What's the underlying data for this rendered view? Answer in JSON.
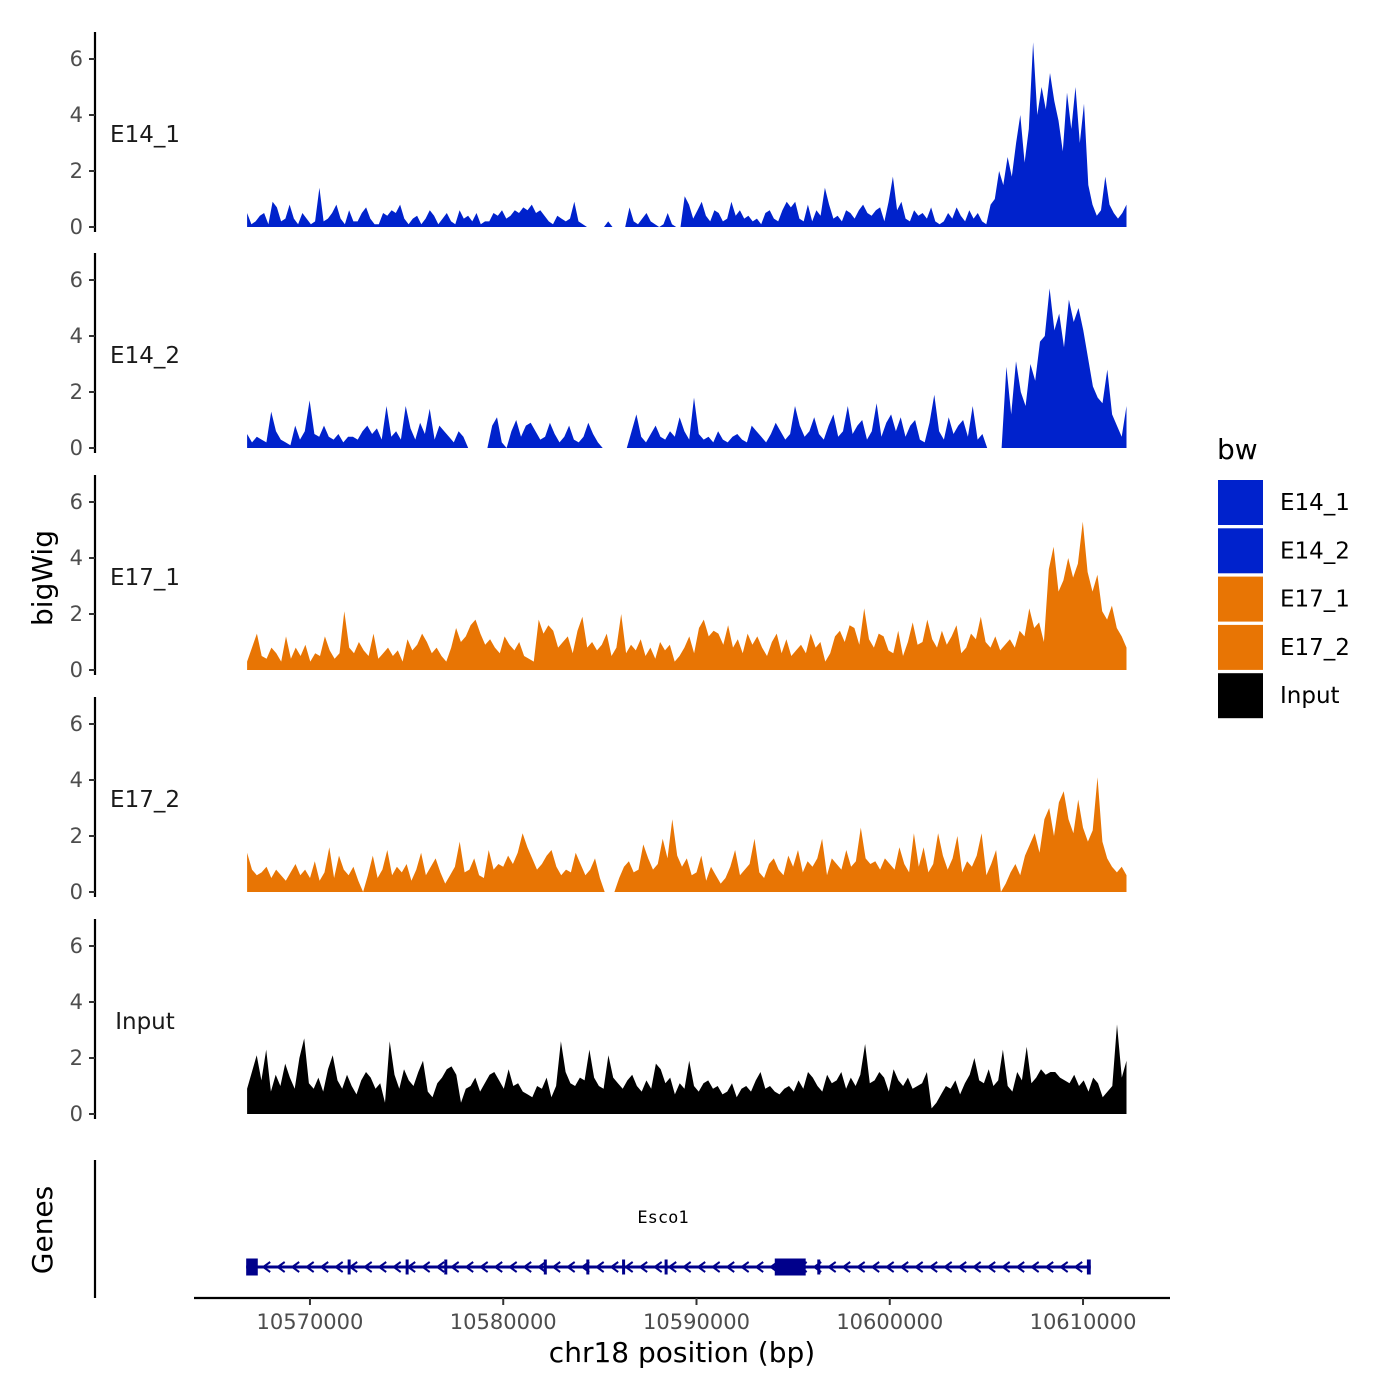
{
  "chart_data": {
    "type": "area",
    "layout": "stacked genome tracks",
    "x_axis": {
      "label": "chr18 position (bp)",
      "ticks": [
        10570000,
        10580000,
        10590000,
        10600000,
        10610000
      ],
      "tick_labels": [
        "10570000",
        "10580000",
        "10590000",
        "10600000",
        "10610000"
      ],
      "range": [
        10564000,
        10614500
      ],
      "data_range": [
        10566750,
        10612250
      ]
    },
    "y_axis": {
      "label": "bigWig",
      "range": [
        0,
        7
      ],
      "ticks": [
        0,
        2,
        4,
        6
      ],
      "tick_labels": [
        "0",
        "2",
        "4",
        "6"
      ]
    },
    "tracks": [
      {
        "name": "E14_1",
        "color": "#0022CC",
        "description": "low background with strong peak near 10608000-10610500",
        "values": [
          0.5,
          0.1,
          0.2,
          0.4,
          0.5,
          0.1,
          0.9,
          0.7,
          0.2,
          0.3,
          0.8,
          0.3,
          0.1,
          0.5,
          0.3,
          0.1,
          0.2,
          1.4,
          0.2,
          0.3,
          0.5,
          0.8,
          0.3,
          0.1,
          0.6,
          0.2,
          0.2,
          0.5,
          0.7,
          0.3,
          0.1,
          0.1,
          0.5,
          0.4,
          0.6,
          0.5,
          0.8,
          0.3,
          0.1,
          0.3,
          0.4,
          0.1,
          0.3,
          0.6,
          0.4,
          0.1,
          0.3,
          0.5,
          0.2,
          0.1,
          0.6,
          0.3,
          0.4,
          0.2,
          0.5,
          0.1,
          0.2,
          0.2,
          0.5,
          0.4,
          0.6,
          0.3,
          0.4,
          0.6,
          0.5,
          0.7,
          0.6,
          0.8,
          0.5,
          0.6,
          0.4,
          0.2,
          0.1,
          0.4,
          0.3,
          0.2,
          0.3,
          0.9,
          0.2,
          0.1,
          0,
          0,
          0,
          0,
          0,
          0.2,
          0,
          0,
          0,
          0,
          0.7,
          0.2,
          0.1,
          0.3,
          0.5,
          0.2,
          0.1,
          0,
          0.1,
          0.5,
          0.1,
          0,
          0,
          1.1,
          0.8,
          0.3,
          0.6,
          0.9,
          0.4,
          0.2,
          0.6,
          0.5,
          0.2,
          0.3,
          0.9,
          0.4,
          0.6,
          0.3,
          0.4,
          0.2,
          0.3,
          0.1,
          0.5,
          0.6,
          0.3,
          0.2,
          0.6,
          0.9,
          0.7,
          0.9,
          0.3,
          0.2,
          0.8,
          0.2,
          0.6,
          0.4,
          1.4,
          0.8,
          0.3,
          0.4,
          0.2,
          0.6,
          0.5,
          0.3,
          0.6,
          0.8,
          0.5,
          0.4,
          0.6,
          0.7,
          0.2,
          0.9,
          1.8,
          0.6,
          0.9,
          0.3,
          0.2,
          0.6,
          0.4,
          0.5,
          0.3,
          0.7,
          0.2,
          0.1,
          0.2,
          0.5,
          0.3,
          0.7,
          0.4,
          0.2,
          0.6,
          0.3,
          0.5,
          0.2,
          0.1,
          0.8,
          1.0,
          2.0,
          1.5,
          2.5,
          1.8,
          3.0,
          4.0,
          2.3,
          3.5,
          6.6,
          4.0,
          5.0,
          4.2,
          5.5,
          4.5,
          3.8,
          2.7,
          4.8,
          3.5,
          5.0,
          3.0,
          4.4,
          1.5,
          0.8,
          0.4,
          0.6,
          1.8,
          0.8,
          0.5,
          0.3,
          0.5,
          0.8
        ]
      },
      {
        "name": "E14_2",
        "color": "#0022CC",
        "description": "low background with gaps, peak near 10608000-10611000",
        "values": [
          0.5,
          0.2,
          0.4,
          0.3,
          0.2,
          1.3,
          0.6,
          0.3,
          0.2,
          0.1,
          0.8,
          0.3,
          0.6,
          1.7,
          0.5,
          0.4,
          0.8,
          0.4,
          0.3,
          0.5,
          0.2,
          0.4,
          0.4,
          0.3,
          0.6,
          0.8,
          0.5,
          0.7,
          0.3,
          1.5,
          0.4,
          0.6,
          0.3,
          1.5,
          0.7,
          0.3,
          0.9,
          0.5,
          1.4,
          0.3,
          0.8,
          0.6,
          0.4,
          0.2,
          0.6,
          0.4,
          0,
          0,
          0,
          0,
          0,
          0.8,
          1.1,
          0.2,
          0,
          0.6,
          1.0,
          0.4,
          0.8,
          0.9,
          0.6,
          0.3,
          0.4,
          0.9,
          0.5,
          0.2,
          0.4,
          0.8,
          0.3,
          0.2,
          0.4,
          0.9,
          0.5,
          0.2,
          0,
          0,
          0,
          0,
          0,
          0,
          0.6,
          1.2,
          0.4,
          0.2,
          0.5,
          0.8,
          0.4,
          0.3,
          0.6,
          0.4,
          1.1,
          0.6,
          0.3,
          1.8,
          0.5,
          0.3,
          0.4,
          0.2,
          0.6,
          0.3,
          0.2,
          0.4,
          0.5,
          0.3,
          0.2,
          0.8,
          0.6,
          0.4,
          0.2,
          0.5,
          0.9,
          0.6,
          0.3,
          0.5,
          1.5,
          0.8,
          0.4,
          0.6,
          1.1,
          0.5,
          0.3,
          0.8,
          1.2,
          0.4,
          0.6,
          1.5,
          0.5,
          0.8,
          1.0,
          0.3,
          0.6,
          1.6,
          0.4,
          0.9,
          1.2,
          0.6,
          1.1,
          0.4,
          0.8,
          1.0,
          0.3,
          0.2,
          0.9,
          1.9,
          0.6,
          0.3,
          1.1,
          0.5,
          0.8,
          1.0,
          0.4,
          1.5,
          0.3,
          0.5,
          0,
          0,
          0,
          0,
          2.9,
          1.2,
          3.1,
          2.0,
          1.5,
          3.0,
          2.4,
          3.8,
          4.0,
          5.7,
          4.2,
          4.8,
          3.6,
          5.3,
          4.5,
          5.0,
          4.2,
          3.2,
          2.2,
          1.8,
          1.6,
          2.8,
          1.2,
          0.8,
          0.4,
          1.5
        ]
      },
      {
        "name": "E17_1",
        "color": "#E87504",
        "description": "moderate background, enriched near 10608000-10611000",
        "values": [
          0.3,
          0.8,
          1.3,
          0.5,
          0.4,
          0.8,
          0.6,
          0.3,
          1.2,
          0.4,
          0.8,
          0.5,
          0.9,
          0.3,
          0.6,
          0.5,
          1.2,
          0.7,
          0.4,
          0.6,
          2.1,
          0.8,
          0.6,
          1.0,
          0.7,
          0.5,
          1.3,
          0.4,
          0.6,
          0.8,
          0.5,
          0.7,
          0.3,
          1.1,
          0.7,
          0.9,
          1.3,
          1.0,
          0.6,
          0.8,
          0.5,
          0.3,
          0.8,
          1.5,
          1.0,
          1.2,
          1.6,
          1.8,
          1.3,
          0.9,
          1.1,
          0.8,
          0.6,
          1.2,
          0.9,
          0.7,
          1.0,
          0.5,
          0.4,
          0.3,
          1.8,
          1.3,
          1.6,
          1.4,
          0.8,
          1.0,
          1.2,
          0.6,
          1.4,
          1.9,
          0.8,
          1.0,
          0.7,
          0.9,
          1.3,
          0.5,
          0.8,
          2.0,
          0.6,
          0.9,
          0.7,
          1.1,
          0.5,
          0.8,
          0.4,
          1.0,
          0.7,
          0.9,
          0.3,
          0.5,
          0.8,
          1.2,
          0.6,
          1.5,
          1.8,
          1.2,
          1.4,
          1.3,
          0.9,
          1.6,
          0.8,
          1.1,
          0.6,
          1.3,
          0.9,
          1.2,
          0.8,
          0.5,
          1.0,
          1.3,
          0.6,
          1.1,
          0.5,
          0.7,
          0.9,
          0.6,
          1.3,
          0.8,
          1.0,
          0.3,
          0.6,
          1.2,
          1.4,
          1.0,
          1.6,
          1.5,
          0.9,
          2.2,
          1.1,
          0.8,
          1.3,
          1.2,
          0.7,
          0.6,
          1.4,
          0.5,
          1.0,
          1.7,
          0.9,
          1.0,
          1.8,
          1.1,
          0.8,
          1.4,
          0.9,
          1.2,
          1.6,
          0.6,
          0.8,
          1.3,
          1.1,
          1.9,
          1.0,
          0.8,
          1.2,
          0.7,
          0.9,
          1.1,
          0.8,
          1.4,
          1.2,
          2.2,
          1.5,
          1.7,
          1.0,
          3.6,
          4.4,
          2.8,
          3.2,
          4.0,
          3.3,
          3.8,
          5.3,
          3.5,
          2.8,
          3.4,
          2.1,
          1.8,
          2.3,
          1.5,
          1.2,
          0.8
        ]
      },
      {
        "name": "E17_2",
        "color": "#E87504",
        "description": "moderate background with gaps, enriched near 10608000-10611000",
        "values": [
          1.4,
          0.8,
          0.6,
          0.7,
          0.9,
          0.5,
          0.8,
          0.6,
          0.4,
          0.7,
          1.0,
          0.6,
          0.8,
          0.5,
          1.1,
          0.4,
          0.7,
          1.6,
          0.5,
          1.3,
          0.8,
          0.6,
          0.9,
          0.4,
          0,
          0.6,
          1.3,
          0.5,
          0.8,
          1.5,
          0.6,
          0.9,
          0.7,
          1.0,
          0.4,
          0.8,
          1.4,
          0.6,
          0.9,
          1.2,
          0.7,
          0.3,
          0.6,
          0.9,
          1.8,
          0.7,
          0.8,
          1.2,
          0.6,
          0.5,
          1.5,
          0.8,
          1.0,
          0.9,
          1.3,
          1.0,
          1.4,
          2.1,
          1.6,
          1.2,
          0.8,
          1.0,
          1.3,
          1.5,
          0.9,
          0.6,
          0.8,
          0.7,
          1.4,
          1.0,
          0.6,
          0.8,
          1.2,
          0.5,
          0,
          0,
          0,
          0.5,
          0.9,
          1.1,
          0.7,
          0.8,
          1.7,
          1.2,
          0.8,
          1.0,
          1.9,
          1.2,
          2.6,
          1.3,
          0.9,
          1.2,
          0.6,
          0.7,
          1.3,
          0.4,
          0.9,
          0.6,
          0.3,
          0.5,
          0.9,
          1.5,
          0.6,
          0.8,
          1.0,
          1.9,
          0.7,
          0.5,
          1.0,
          1.2,
          0.8,
          0.6,
          1.3,
          0.9,
          1.5,
          0.7,
          1.1,
          0.9,
          1.2,
          1.9,
          0.6,
          1.2,
          1.0,
          0.8,
          1.5,
          0.9,
          1.1,
          2.3,
          1.2,
          1.0,
          1.1,
          0.8,
          1.2,
          1.0,
          0.8,
          1.6,
          1.0,
          0.7,
          2.1,
          0.9,
          1.6,
          0.7,
          1.0,
          2.1,
          1.3,
          0.8,
          1.2,
          2.0,
          0.7,
          1.1,
          0.9,
          1.3,
          2.1,
          0.6,
          1.0,
          1.5,
          0,
          0.3,
          0.7,
          1.0,
          0.6,
          1.3,
          1.7,
          2.1,
          1.4,
          2.6,
          3.0,
          2.0,
          3.2,
          3.6,
          2.6,
          2.1,
          3.3,
          2.3,
          1.8,
          2.2,
          4.1,
          1.8,
          1.2,
          0.9,
          0.7,
          0.9,
          0.6
        ]
      },
      {
        "name": "Input",
        "color": "#000000",
        "description": "flat background around 1-2 across region",
        "values": [
          0.9,
          1.5,
          2.1,
          1.2,
          2.3,
          0.8,
          1.4,
          1.0,
          1.8,
          1.3,
          0.9,
          2.0,
          2.7,
          1.1,
          0.9,
          1.3,
          0.8,
          1.6,
          2.1,
          1.2,
          0.9,
          1.4,
          1.0,
          0.7,
          1.2,
          1.5,
          1.3,
          0.9,
          1.1,
          0.4,
          2.6,
          1.4,
          0.9,
          1.6,
          1.2,
          1.0,
          1.5,
          1.9,
          0.8,
          0.6,
          1.1,
          1.3,
          1.6,
          1.7,
          1.4,
          0.4,
          0.9,
          1.0,
          1.3,
          0.8,
          1.1,
          1.4,
          1.5,
          1.2,
          0.9,
          1.6,
          1.0,
          1.1,
          0.8,
          0.7,
          0.6,
          1.0,
          0.9,
          1.3,
          0.6,
          1.0,
          2.6,
          1.5,
          1.1,
          1.0,
          1.3,
          1.2,
          2.3,
          1.3,
          1.0,
          0.9,
          2.1,
          1.3,
          1.1,
          0.9,
          1.2,
          1.4,
          1.0,
          0.8,
          1.2,
          0.9,
          1.8,
          1.6,
          1.1,
          1.3,
          0.7,
          1.1,
          0.9,
          1.9,
          1.0,
          0.8,
          1.1,
          1.2,
          0.9,
          1.0,
          0.7,
          0.8,
          1.1,
          0.6,
          0.9,
          1.0,
          0.8,
          1.2,
          1.5,
          0.9,
          1.0,
          0.8,
          0.7,
          0.9,
          1.0,
          0.8,
          1.2,
          0.9,
          1.5,
          1.3,
          1.0,
          0.8,
          1.4,
          1.1,
          1.2,
          1.5,
          0.9,
          1.3,
          1.0,
          1.4,
          2.5,
          1.1,
          1.2,
          1.5,
          1.3,
          0.8,
          1.6,
          1.2,
          1.0,
          1.3,
          0.9,
          1.0,
          1.1,
          1.5,
          0.2,
          0.4,
          0.7,
          1.0,
          0.9,
          1.2,
          0.7,
          1.1,
          1.4,
          2.0,
          1.2,
          1.1,
          1.6,
          1.0,
          1.2,
          2.3,
          1.0,
          0.8,
          1.5,
          1.2,
          2.4,
          1.1,
          1.3,
          1.6,
          1.4,
          1.5,
          1.5,
          1.3,
          1.2,
          1.1,
          1.4,
          1.0,
          1.2,
          0.8,
          1.3,
          1.1,
          0.6,
          0.8,
          1.0,
          3.2,
          1.3,
          1.9
        ]
      }
    ],
    "legend": {
      "title": "bw",
      "position": "right",
      "entries": [
        {
          "label": "E14_1",
          "color": "#0022CC"
        },
        {
          "label": "E14_2",
          "color": "#0022CC"
        },
        {
          "label": "E17_1",
          "color": "#E87504"
        },
        {
          "label": "E17_2",
          "color": "#E87504"
        },
        {
          "label": "Input",
          "color": "#000000"
        }
      ]
    },
    "genes_track": {
      "label": "Genes",
      "color": "#00008B",
      "genes": [
        {
          "name": "Esco1",
          "strand": "-",
          "start": 10566700,
          "end": 10610400,
          "exons": [
            {
              "start": 10566700,
              "end": 10567300,
              "kind": "utr"
            },
            {
              "start": 10571950,
              "end": 10572050,
              "kind": "cds"
            },
            {
              "start": 10574950,
              "end": 10575020,
              "kind": "cds"
            },
            {
              "start": 10576950,
              "end": 10577020,
              "kind": "cds"
            },
            {
              "start": 10582100,
              "end": 10582170,
              "kind": "cds"
            },
            {
              "start": 10584300,
              "end": 10584370,
              "kind": "cds"
            },
            {
              "start": 10586150,
              "end": 10586220,
              "kind": "cds"
            },
            {
              "start": 10588350,
              "end": 10588420,
              "kind": "cds"
            },
            {
              "start": 10594050,
              "end": 10595650,
              "kind": "utr"
            },
            {
              "start": 10596250,
              "end": 10596320,
              "kind": "cds"
            },
            {
              "start": 10610200,
              "end": 10610400,
              "kind": "cds"
            }
          ]
        }
      ]
    }
  }
}
